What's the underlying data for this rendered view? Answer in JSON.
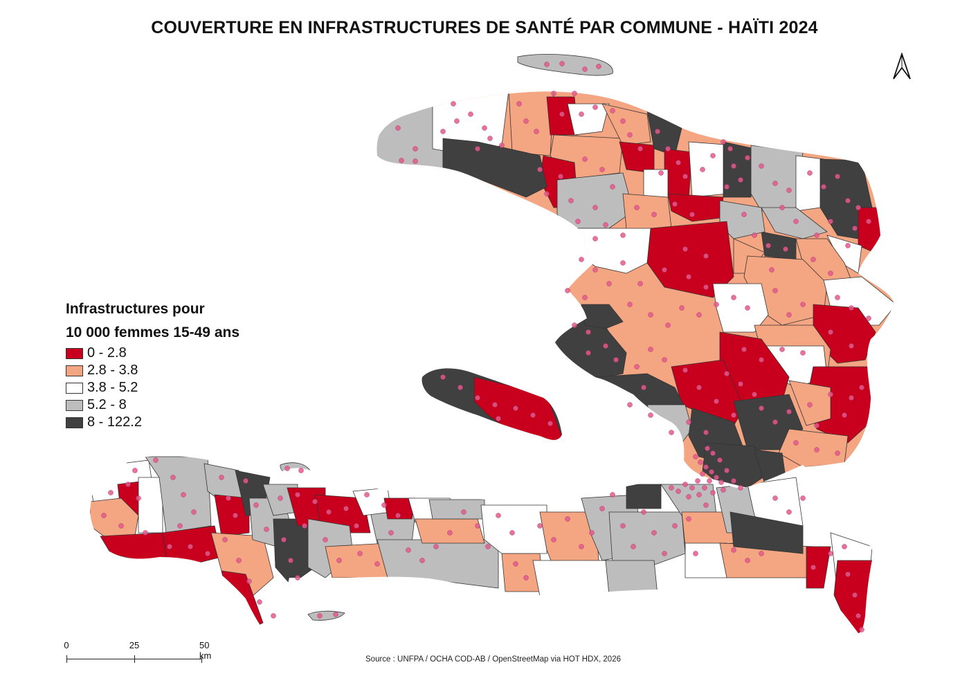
{
  "title": "COUVERTURE EN INFRASTRUCTURES DE SANTÉ PAR COMMUNE - HAÏTI 2024",
  "legend": {
    "title_line1": "Infrastructures pour",
    "title_line2": "10 000 femmes 15-49 ans",
    "classes": [
      {
        "label": "0 - 2.8",
        "color": "#c8001e"
      },
      {
        "label": "2.8 - 3.8",
        "color": "#f4a582"
      },
      {
        "label": "3.8 - 5.2",
        "color": "#ffffff"
      },
      {
        "label": "5.2 - 8",
        "color": "#bdbdbd"
      },
      {
        "label": "8 - 122.2",
        "color": "#404040"
      }
    ]
  },
  "facility_marker_color": "#e05a8c",
  "scale_bar": {
    "labels": [
      "0",
      "25",
      "50 km"
    ]
  },
  "north_arrow": "north-arrow-icon",
  "source": "Source : UNFPA / OCHA COD-AB / OpenStreetMap via HOT HDX, 2026"
}
